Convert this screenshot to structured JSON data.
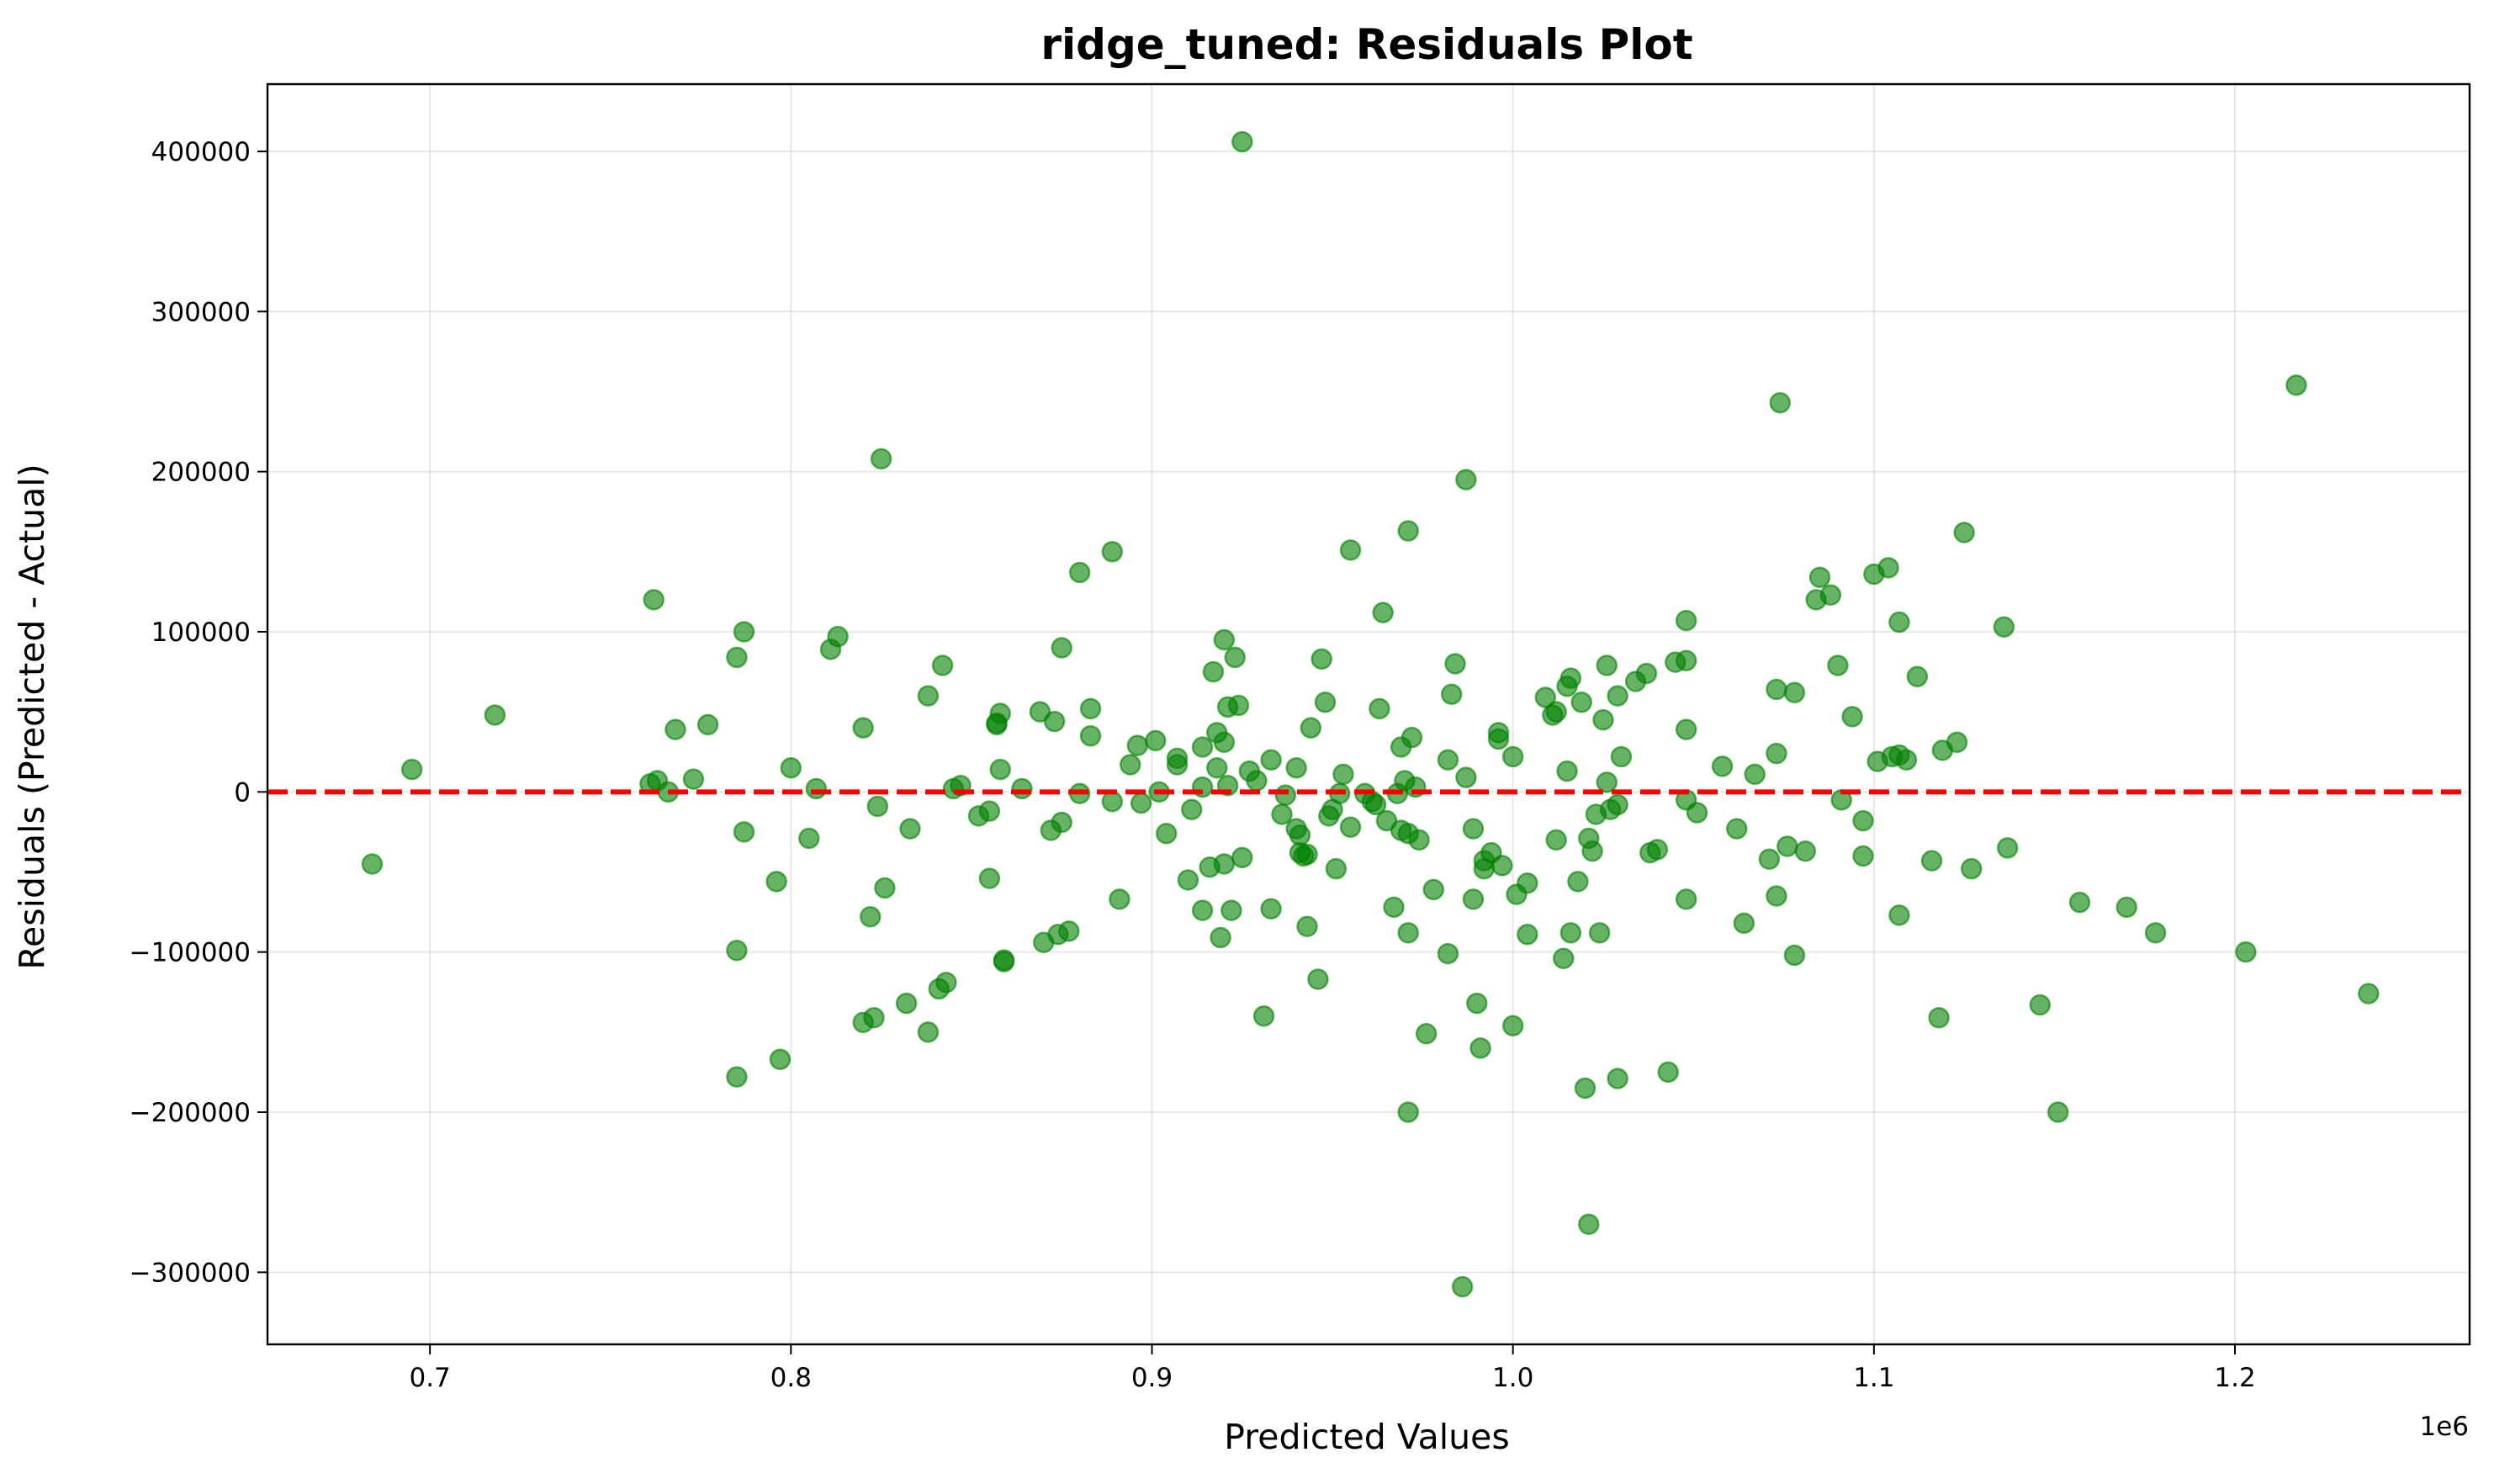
{
  "chart_data": {
    "type": "scatter",
    "title": "ridge_tuned: Residuals Plot",
    "xlabel": "Predicted Values",
    "ylabel": "Residuals (Predicted - Actual)",
    "x_offset_text": "1e6",
    "xlim": [
      655000,
      1265000
    ],
    "ylim": [
      -345000,
      442000
    ],
    "x_ticks": [
      700000,
      800000,
      900000,
      1000000,
      1100000,
      1200000
    ],
    "x_tick_labels": [
      "0.7",
      "0.8",
      "0.9",
      "1.0",
      "1.1",
      "1.2"
    ],
    "y_ticks": [
      -300000,
      -200000,
      -100000,
      0,
      100000,
      200000,
      300000,
      400000
    ],
    "y_tick_labels": [
      "−300000",
      "−200000",
      "−100000",
      "0",
      "100000",
      "200000",
      "300000",
      "400000"
    ],
    "grid": true,
    "marker_color": "#008000",
    "reference_line": {
      "y": 0,
      "color": "#ff0000",
      "style": "dashed"
    },
    "points": [
      [
        684000,
        -45000
      ],
      [
        695000,
        14000
      ],
      [
        718000,
        48000
      ],
      [
        762000,
        120000
      ],
      [
        761000,
        5000
      ],
      [
        763000,
        7000
      ],
      [
        766000,
        0
      ],
      [
        768000,
        39000
      ],
      [
        773000,
        8000
      ],
      [
        777000,
        42000
      ],
      [
        785000,
        -178000
      ],
      [
        785000,
        -99000
      ],
      [
        785000,
        84000
      ],
      [
        787000,
        100000
      ],
      [
        787000,
        -25000
      ],
      [
        796000,
        -56000
      ],
      [
        797000,
        -167000
      ],
      [
        800000,
        15000
      ],
      [
        805000,
        -29000
      ],
      [
        807000,
        2000
      ],
      [
        811000,
        89000
      ],
      [
        813000,
        97000
      ],
      [
        820000,
        -144000
      ],
      [
        820000,
        40000
      ],
      [
        822000,
        -78000
      ],
      [
        823000,
        -141000
      ],
      [
        824000,
        -9000
      ],
      [
        825000,
        208000
      ],
      [
        826000,
        -60000
      ],
      [
        832000,
        -132000
      ],
      [
        833000,
        -23000
      ],
      [
        838000,
        60000
      ],
      [
        838000,
        -150000
      ],
      [
        841000,
        -123000
      ],
      [
        842000,
        79000
      ],
      [
        843000,
        -119000
      ],
      [
        845000,
        2000
      ],
      [
        847000,
        4000
      ],
      [
        852000,
        -15000
      ],
      [
        855000,
        -54000
      ],
      [
        855000,
        -12000
      ],
      [
        857000,
        43000
      ],
      [
        857000,
        42000
      ],
      [
        858000,
        49000
      ],
      [
        858000,
        14000
      ],
      [
        859000,
        -105000
      ],
      [
        859000,
        -106000
      ],
      [
        864000,
        2000
      ],
      [
        869000,
        50000
      ],
      [
        870000,
        -94000
      ],
      [
        872000,
        -24000
      ],
      [
        873000,
        44000
      ],
      [
        874000,
        -89000
      ],
      [
        875000,
        -19000
      ],
      [
        875000,
        90000
      ],
      [
        877000,
        -87000
      ],
      [
        880000,
        137000
      ],
      [
        880000,
        -1000
      ],
      [
        883000,
        52000
      ],
      [
        883000,
        35000
      ],
      [
        889000,
        150000
      ],
      [
        889000,
        -6000
      ],
      [
        891000,
        -67000
      ],
      [
        894000,
        17000
      ],
      [
        896000,
        29000
      ],
      [
        897000,
        -7000
      ],
      [
        901000,
        32000
      ],
      [
        902000,
        0
      ],
      [
        904000,
        -26000
      ],
      [
        907000,
        21000
      ],
      [
        907000,
        17000
      ],
      [
        910000,
        -55000
      ],
      [
        911000,
        -11000
      ],
      [
        914000,
        -74000
      ],
      [
        914000,
        28000
      ],
      [
        914000,
        3000
      ],
      [
        916000,
        -47000
      ],
      [
        917000,
        75000
      ],
      [
        918000,
        37000
      ],
      [
        918000,
        15000
      ],
      [
        919000,
        -91000
      ],
      [
        920000,
        95000
      ],
      [
        920000,
        -45000
      ],
      [
        920000,
        31000
      ],
      [
        921000,
        53000
      ],
      [
        921000,
        4000
      ],
      [
        922000,
        -74000
      ],
      [
        923000,
        84000
      ],
      [
        924000,
        54000
      ],
      [
        925000,
        -41000
      ],
      [
        925000,
        406000
      ],
      [
        927000,
        13000
      ],
      [
        929000,
        7000
      ],
      [
        931000,
        -140000
      ],
      [
        933000,
        -73000
      ],
      [
        933000,
        20000
      ],
      [
        936000,
        -14000
      ],
      [
        937000,
        -2000
      ],
      [
        940000,
        -23000
      ],
      [
        940000,
        15000
      ],
      [
        941000,
        -27000
      ],
      [
        941000,
        -38000
      ],
      [
        942000,
        -40000
      ],
      [
        943000,
        -84000
      ],
      [
        943000,
        -39000
      ],
      [
        944000,
        40000
      ],
      [
        946000,
        -117000
      ],
      [
        947000,
        83000
      ],
      [
        948000,
        56000
      ],
      [
        949000,
        -15000
      ],
      [
        950000,
        -11000
      ],
      [
        951000,
        -48000
      ],
      [
        952000,
        -1000
      ],
      [
        953000,
        11000
      ],
      [
        955000,
        151000
      ],
      [
        955000,
        -22000
      ],
      [
        959000,
        -1000
      ],
      [
        961000,
        -6000
      ],
      [
        962000,
        -8000
      ],
      [
        963000,
        52000
      ],
      [
        964000,
        112000
      ],
      [
        965000,
        -18000
      ],
      [
        967000,
        -72000
      ],
      [
        968000,
        -1000
      ],
      [
        969000,
        -24000
      ],
      [
        969000,
        28000
      ],
      [
        970000,
        7000
      ],
      [
        971000,
        163000
      ],
      [
        971000,
        -26000
      ],
      [
        971000,
        -88000
      ],
      [
        971000,
        -200000
      ],
      [
        972000,
        34000
      ],
      [
        973000,
        3000
      ],
      [
        974000,
        -30000
      ],
      [
        976000,
        -151000
      ],
      [
        978000,
        -61000
      ],
      [
        982000,
        -101000
      ],
      [
        982000,
        20000
      ],
      [
        983000,
        61000
      ],
      [
        984000,
        80000
      ],
      [
        986000,
        -309000
      ],
      [
        987000,
        195000
      ],
      [
        987000,
        9000
      ],
      [
        989000,
        -23000
      ],
      [
        989000,
        -67000
      ],
      [
        990000,
        -132000
      ],
      [
        991000,
        -160000
      ],
      [
        992000,
        -43000
      ],
      [
        992000,
        -48000
      ],
      [
        994000,
        -38000
      ],
      [
        996000,
        37000
      ],
      [
        996000,
        33000
      ],
      [
        997000,
        -46000
      ],
      [
        1000000,
        -146000
      ],
      [
        1000000,
        22000
      ],
      [
        1001000,
        -64000
      ],
      [
        1004000,
        -89000
      ],
      [
        1004000,
        -57000
      ],
      [
        1009000,
        59000
      ],
      [
        1011000,
        48000
      ],
      [
        1012000,
        -30000
      ],
      [
        1012000,
        50000
      ],
      [
        1014000,
        -104000
      ],
      [
        1015000,
        13000
      ],
      [
        1015000,
        66000
      ],
      [
        1016000,
        71000
      ],
      [
        1016000,
        -88000
      ],
      [
        1018000,
        -56000
      ],
      [
        1019000,
        56000
      ],
      [
        1020000,
        -185000
      ],
      [
        1021000,
        -29000
      ],
      [
        1021000,
        -270000
      ],
      [
        1022000,
        -37000
      ],
      [
        1023000,
        -14000
      ],
      [
        1024000,
        -88000
      ],
      [
        1025000,
        45000
      ],
      [
        1026000,
        79000
      ],
      [
        1026000,
        6000
      ],
      [
        1027000,
        -11000
      ],
      [
        1029000,
        -179000
      ],
      [
        1029000,
        60000
      ],
      [
        1029000,
        -8000
      ],
      [
        1030000,
        22000
      ],
      [
        1034000,
        69000
      ],
      [
        1037000,
        74000
      ],
      [
        1038000,
        -38000
      ],
      [
        1040000,
        -36000
      ],
      [
        1043000,
        -175000
      ],
      [
        1045000,
        81000
      ],
      [
        1048000,
        82000
      ],
      [
        1048000,
        107000
      ],
      [
        1048000,
        39000
      ],
      [
        1048000,
        -5000
      ],
      [
        1048000,
        -67000
      ],
      [
        1051000,
        -13000
      ],
      [
        1058000,
        16000
      ],
      [
        1062000,
        -23000
      ],
      [
        1064000,
        -82000
      ],
      [
        1067000,
        11000
      ],
      [
        1071000,
        -42000
      ],
      [
        1073000,
        64000
      ],
      [
        1073000,
        24000
      ],
      [
        1073000,
        -65000
      ],
      [
        1074000,
        243000
      ],
      [
        1076000,
        -34000
      ],
      [
        1078000,
        62000
      ],
      [
        1078000,
        -102000
      ],
      [
        1081000,
        -37000
      ],
      [
        1084000,
        120000
      ],
      [
        1085000,
        134000
      ],
      [
        1088000,
        123000
      ],
      [
        1090000,
        79000
      ],
      [
        1091000,
        -5000
      ],
      [
        1094000,
        47000
      ],
      [
        1097000,
        -40000
      ],
      [
        1097000,
        -18000
      ],
      [
        1100000,
        136000
      ],
      [
        1101000,
        19000
      ],
      [
        1104000,
        140000
      ],
      [
        1105000,
        22000
      ],
      [
        1107000,
        106000
      ],
      [
        1107000,
        23000
      ],
      [
        1107000,
        -77000
      ],
      [
        1109000,
        20000
      ],
      [
        1112000,
        72000
      ],
      [
        1116000,
        -43000
      ],
      [
        1118000,
        -141000
      ],
      [
        1119000,
        26000
      ],
      [
        1123000,
        31000
      ],
      [
        1125000,
        162000
      ],
      [
        1127000,
        -48000
      ],
      [
        1136000,
        103000
      ],
      [
        1137000,
        -35000
      ],
      [
        1146000,
        -133000
      ],
      [
        1151000,
        -200000
      ],
      [
        1157000,
        -69000
      ],
      [
        1170000,
        -72000
      ],
      [
        1178000,
        -88000
      ],
      [
        1203000,
        -100000
      ],
      [
        1217000,
        254000
      ],
      [
        1237000,
        -126000
      ]
    ]
  }
}
